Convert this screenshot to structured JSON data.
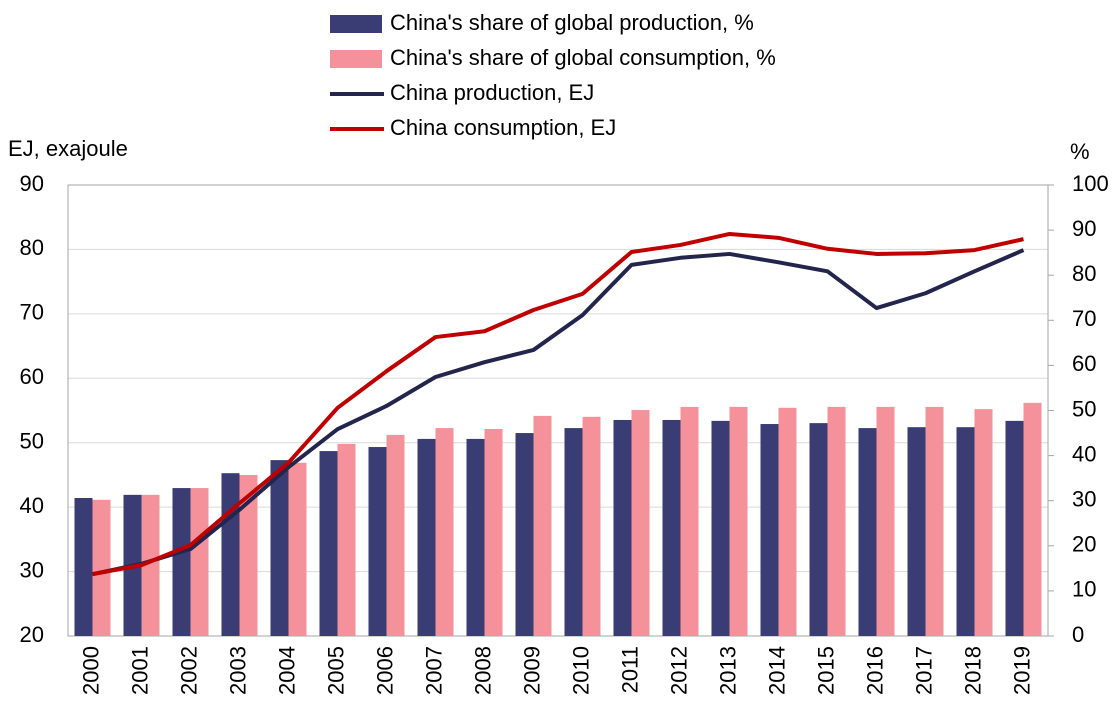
{
  "chart_data": {
    "type": "bar_line",
    "y_label": "EJ, exajoule",
    "y2_label": "%",
    "categories": [
      "2000",
      "2001",
      "2002",
      "2003",
      "2004",
      "2005",
      "2006",
      "2007",
      "2008",
      "2009",
      "2010",
      "2011",
      "2012",
      "2013",
      "2014",
      "2015",
      "2016",
      "2017",
      "2018",
      "2019"
    ],
    "series": [
      {
        "name": "China's share of global production, %",
        "type": "bar",
        "axis": "y2",
        "color": "#3a3d73",
        "values": [
          30.6,
          31.3,
          32.8,
          36.1,
          39.0,
          41.0,
          41.9,
          43.7,
          43.7,
          45.0,
          46.1,
          47.9,
          47.9,
          47.7,
          47.0,
          47.2,
          46.1,
          46.3,
          46.3,
          47.7
        ]
      },
      {
        "name": "China's share of global consumption, %",
        "type": "bar",
        "axis": "y2",
        "color": "#f4919a",
        "values": [
          30.2,
          31.3,
          32.8,
          35.7,
          38.4,
          42.6,
          44.6,
          46.1,
          45.9,
          48.8,
          48.6,
          50.1,
          50.8,
          50.8,
          50.6,
          50.8,
          50.8,
          50.8,
          50.3,
          51.7
        ]
      },
      {
        "name": "China production, EJ",
        "type": "line",
        "color": "#23254d",
        "values": [
          29.6,
          31.2,
          33.5,
          39.6,
          46.2,
          52.1,
          55.7,
          60.2,
          62.5,
          64.4,
          69.8,
          77.6,
          78.7,
          79.3,
          78.0,
          76.6,
          70.9,
          73.2,
          76.6,
          79.9
        ]
      },
      {
        "name": "China consumption, EJ",
        "type": "line",
        "color": "#c00000",
        "values": [
          29.6,
          31.0,
          34.1,
          40.6,
          46.9,
          55.4,
          61.1,
          66.4,
          67.3,
          70.6,
          73.1,
          79.6,
          80.7,
          82.4,
          81.8,
          80.1,
          79.3,
          79.4,
          79.9,
          81.6
        ]
      }
    ],
    "ylim": [
      20,
      90
    ],
    "yticks": [
      20,
      30,
      40,
      50,
      60,
      70,
      80,
      90
    ],
    "y2lim": [
      0,
      100
    ],
    "y2ticks": [
      0,
      10,
      20,
      30,
      40,
      50,
      60,
      70,
      80,
      90,
      100
    ],
    "grid": true
  }
}
